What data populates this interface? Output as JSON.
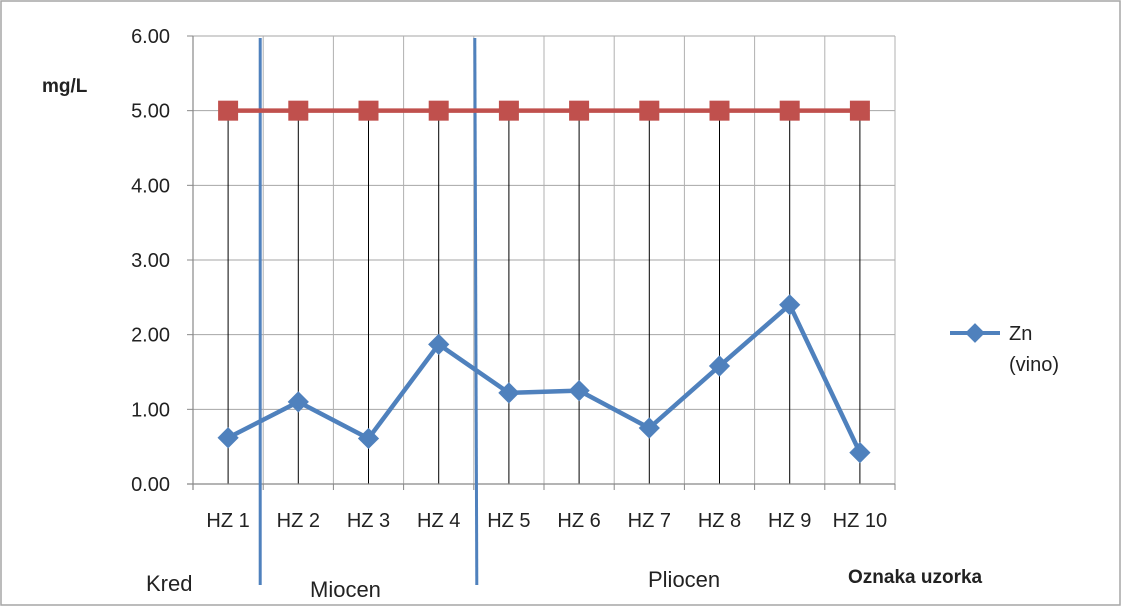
{
  "chart_data": {
    "type": "line",
    "categories": [
      "HZ 1",
      "HZ 2",
      "HZ 3",
      "HZ 4",
      "HZ 5",
      "HZ 6",
      "HZ 7",
      "HZ 8",
      "HZ 9",
      "HZ 10"
    ],
    "series": [
      {
        "name": "Zn (vino)",
        "legend_lines": [
          "Zn",
          "(vino)"
        ],
        "color": "#4F81BD",
        "marker": "diamond",
        "values": [
          0.62,
          1.1,
          0.61,
          1.87,
          1.22,
          1.25,
          0.75,
          1.58,
          2.4,
          0.42
        ]
      },
      {
        "name": "",
        "color": "#C0504D",
        "marker": "square",
        "values": [
          5.0,
          5.0,
          5.0,
          5.0,
          5.0,
          5.0,
          5.0,
          5.0,
          5.0,
          5.0
        ]
      }
    ],
    "ylabel": "mg/L",
    "xlabel": "Oznaka uzorka",
    "ylim": [
      0,
      6
    ],
    "yticks": [
      "0.00",
      "1.00",
      "2.00",
      "3.00",
      "4.00",
      "5.00",
      "6.00"
    ],
    "grid": {
      "horizontal": true,
      "vertical_category_lines": true
    },
    "dividers": [
      {
        "after_category_index": 0,
        "color": "#4F81BD"
      },
      {
        "after_category_index": 3,
        "color": "#4F81BD"
      }
    ],
    "regions": [
      {
        "label": "Kred"
      },
      {
        "label": "Miocen"
      },
      {
        "label": "Pliocen"
      }
    ],
    "legend_position": "right"
  }
}
